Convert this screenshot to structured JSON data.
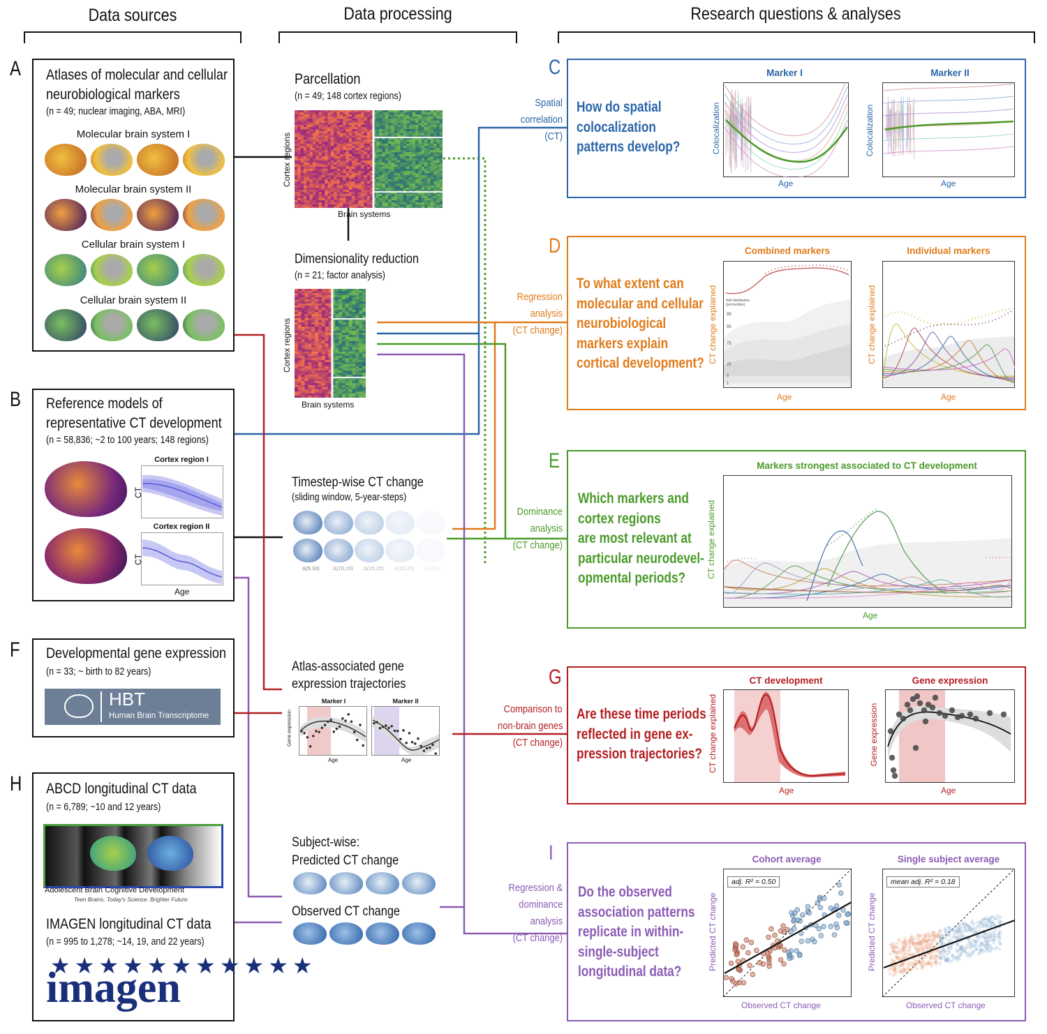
{
  "columns": {
    "sources": "Data sources",
    "processing": "Data processing",
    "questions": "Research questions & analyses"
  },
  "panels": {
    "A": {
      "letter": "A",
      "title1": "Atlases of molecular and cellular",
      "title2": "neurobiological markers",
      "sub": "(n = 49; nuclear imaging, ABA, MRI)",
      "systems": [
        "Molecular brain system I",
        "Molecular brain system II",
        "Cellular brain system I",
        "Cellular brain system II"
      ]
    },
    "B": {
      "letter": "B",
      "title1": "Reference models of",
      "title2": "representative CT development",
      "sub": "(n = 58,836; ~2 to 100 years; 148 regions)",
      "region1": "Cortex region I",
      "region2": "Cortex region II",
      "ct": "CT",
      "age": "Age"
    },
    "F": {
      "letter": "F",
      "title": "Developmental gene expression",
      "sub": "(n = 33; ~ birth to 82 years)",
      "logo_big": "HBT",
      "logo_small": "Human Brain Transcriptome"
    },
    "H": {
      "letter": "H",
      "title": "ABCD longitudinal CT data",
      "sub": "(n = 6,789; ~10 and 12 years)",
      "abcd_name": "Adolescent Brain Cognitive Development",
      "abcd_tag": "Teen Brains. Today's Science. Brighter Future.",
      "title2": "IMAGEN longitudinal CT data",
      "sub2": "(n = 995 to 1,278; ~14, 19, and 22 years)",
      "imagen_logo": "imagen"
    }
  },
  "processing": {
    "parcellation": {
      "title": "Parcellation",
      "sub": "(n = 49; 148 cortex regions)",
      "ylabel": "Cortex regions",
      "xlabel": "Brain systems"
    },
    "dimred": {
      "title": "Dimensionality reduction",
      "sub": "(n = 21; factor analysis)",
      "ylabel": "Cortex regions",
      "xlabel": "Brain systems"
    },
    "timestep": {
      "title": "Timestep-wise CT change",
      "sub": "(sliding window, 5-year-steps)",
      "labels": [
        "Δ(5,10)",
        "Δ(10,15)",
        "Δ(15,20)",
        "Δ(20,25)",
        "Δ(25,3"
      ]
    },
    "gene": {
      "title1": "Atlas-associated gene",
      "title2": "expression trajectories",
      "m1": "Marker I",
      "m2": "Marker II",
      "ylabel": "Gene expression",
      "xlabel": "Age"
    },
    "subject": {
      "title1": "Subject-wise:",
      "title2": "Predicted CT change",
      "title3": "Observed CT change"
    }
  },
  "connectors": {
    "C": [
      "Spatial",
      "correlation",
      "(CT)"
    ],
    "D": [
      "Regression",
      "analysis",
      "(CT change)"
    ],
    "E": [
      "Dominance",
      "analysis",
      "(CT change)"
    ],
    "G": [
      "Comparison to",
      "non-brain genes",
      "(CT change)"
    ],
    "I": [
      "Regression &",
      "dominance",
      "analysis",
      "(CT change)"
    ]
  },
  "questions": {
    "C": {
      "letter": "C",
      "lines": [
        "How do spatial",
        "colocalization",
        "patterns develop?"
      ],
      "chart1": "Marker I",
      "chart2": "Marker II",
      "ylabel": "Colocalization",
      "xlabel": "Age"
    },
    "D": {
      "letter": "D",
      "lines": [
        "To what extent can",
        "molecular and cellular",
        "neurobiological",
        "markers explain",
        "cortical development?"
      ],
      "chart1": "Combined markers",
      "chart2": "Individual markers",
      "ylabel": "CT change explained",
      "xlabel": "Age",
      "null": "Null distribution (percentiles)",
      "pct": [
        "99",
        "95",
        "75",
        "25",
        "5",
        "1"
      ]
    },
    "E": {
      "letter": "E",
      "lines": [
        "Which markers and",
        "cortex regions",
        "are most relevant at",
        "particular neurodevel-",
        "opmental periods?"
      ],
      "chart": "Markers strongest associated to CT development",
      "ylabel": "CT change explained",
      "xlabel": "Age"
    },
    "G": {
      "letter": "G",
      "lines": [
        "Are these time periods",
        "reflected in gene ex-",
        "pression trajectories?"
      ],
      "chart1": "CT development",
      "chart2": "Gene expression",
      "ylabel1": "CT change explained",
      "ylabel2": "Gene expression",
      "xlabel": "Age"
    },
    "I": {
      "letter": "I",
      "lines": [
        "Do the observed",
        "association patterns",
        "replicate in within-",
        "single-subject",
        "longitudinal data?"
      ],
      "chart1": "Cohort average",
      "chart2": "Single subject average",
      "r1": "adj. R² = 0.50",
      "r2": "mean adj. R² = 0.18",
      "ylabel": "Predicted CT change",
      "xlabel": "Observed CT change"
    }
  },
  "colors": {
    "C": "#2a65a8",
    "D": "#e07b1a",
    "E": "#4a9a2a",
    "G": "#b41e22",
    "I": "#8b5bb5",
    "black": "#111111"
  }
}
